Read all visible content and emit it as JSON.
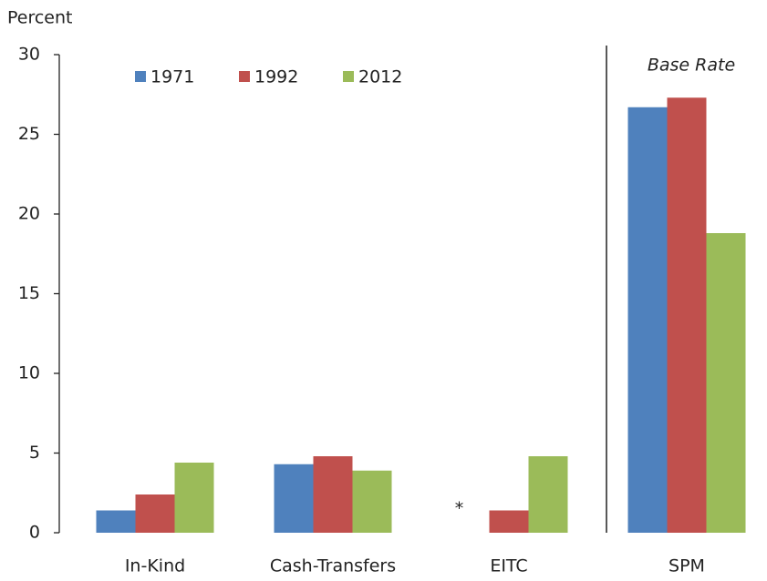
{
  "chart_data": {
    "type": "bar",
    "y_label": "Percent",
    "categories": [
      "In-Kind",
      "Cash-Transfers",
      "EITC",
      "SPM"
    ],
    "series": [
      {
        "name": "1971",
        "color": "#4f81bd",
        "values": [
          1.4,
          4.3,
          null,
          26.7
        ]
      },
      {
        "name": "1992",
        "color": "#c0504d",
        "values": [
          2.4,
          4.8,
          1.4,
          27.3
        ]
      },
      {
        "name": "2012",
        "color": "#9bbb59",
        "values": [
          4.4,
          3.9,
          4.8,
          18.8
        ]
      }
    ],
    "annotations": [
      "*",
      "Base Rate"
    ],
    "ylim": [
      0,
      30
    ],
    "yticks": [
      0,
      5,
      10,
      15,
      20,
      25,
      30
    ],
    "grid": false,
    "legend": "top"
  }
}
